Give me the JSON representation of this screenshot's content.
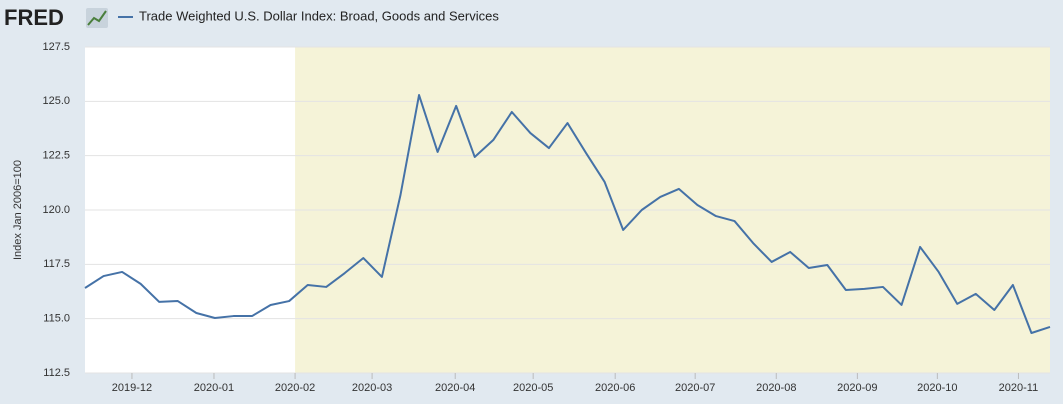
{
  "chart_data": {
    "type": "line",
    "logo": "FRED",
    "y_axis_label": "Index Jan 2006=100",
    "x": [
      0,
      1,
      2,
      3,
      4,
      5,
      6,
      7,
      8,
      9,
      10,
      11,
      12,
      13,
      14,
      15,
      16,
      17,
      18,
      19,
      20,
      21,
      22,
      23,
      24,
      25,
      26,
      27,
      28,
      29,
      30,
      31,
      32,
      33,
      34,
      35,
      36,
      37,
      38,
      39,
      40,
      41,
      42,
      43,
      44,
      45,
      46,
      47,
      48,
      49,
      50,
      51,
      52
    ],
    "series": [
      {
        "name": "Trade Weighted U.S. Dollar Index: Broad, Goods and Services",
        "color": "#4572a7",
        "values": [
          116.41,
          116.96,
          117.15,
          116.6,
          115.77,
          115.81,
          115.26,
          115.03,
          115.12,
          115.12,
          115.63,
          115.81,
          116.55,
          116.46,
          117.1,
          117.79,
          116.92,
          120.69,
          125.29,
          122.67,
          124.79,
          122.44,
          123.22,
          124.51,
          123.54,
          122.85,
          124.0,
          122.62,
          121.29,
          119.08,
          120.0,
          120.6,
          120.97,
          120.23,
          119.72,
          119.49,
          118.48,
          117.61,
          118.07,
          117.33,
          117.47,
          116.32,
          116.37,
          116.46,
          115.63,
          118.3,
          117.15,
          115.68,
          116.14,
          115.4,
          116.55,
          114.34,
          114.62
        ]
      }
    ],
    "xlim": [
      0,
      52
    ],
    "xticks": [
      {
        "value": 2.53,
        "label": "2019-12"
      },
      {
        "value": 6.95,
        "label": "2020-01"
      },
      {
        "value": 11.32,
        "label": "2020-02"
      },
      {
        "value": 15.47,
        "label": "2020-03"
      },
      {
        "value": 19.95,
        "label": "2020-04"
      },
      {
        "value": 24.15,
        "label": "2020-05"
      },
      {
        "value": 28.57,
        "label": "2020-06"
      },
      {
        "value": 32.88,
        "label": "2020-07"
      },
      {
        "value": 37.25,
        "label": "2020-08"
      },
      {
        "value": 41.62,
        "label": "2020-09"
      },
      {
        "value": 45.93,
        "label": "2020-10"
      },
      {
        "value": 50.3,
        "label": "2020-11"
      }
    ],
    "ylim": [
      112.5,
      127.5
    ],
    "yticks": [
      112.5,
      {
        "value": 115,
        "label": "115.0"
      },
      117.5,
      {
        "value": 120,
        "label": "120.0"
      },
      122.5,
      {
        "value": 125,
        "label": "125.0"
      },
      127.5
    ],
    "grid": true,
    "recession_shading": {
      "from": 11.32,
      "to": 52,
      "color": "#f5f3d8"
    }
  }
}
